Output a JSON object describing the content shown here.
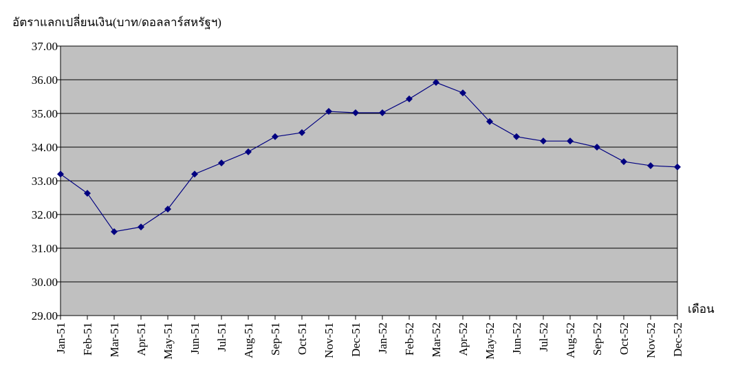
{
  "chart_data": {
    "type": "line",
    "y_axis_label": "อัตราแลกเปลี่ยนเงิน(บาท/ดอลลาร์สหรัฐฯ)",
    "x_axis_label": "เดือน",
    "categories": [
      "Jan-51",
      "Feb-51",
      "Mar-51",
      "Apr-51",
      "May-51",
      "Jun-51",
      "Jul-51",
      "Aug-51",
      "Sep-51",
      "Oct-51",
      "Nov-51",
      "Dec-51",
      "Jan-52",
      "Feb-52",
      "Mar-52",
      "Apr-52",
      "May-52",
      "Jun-52",
      "Jul-52",
      "Aug-52",
      "Sep-52",
      "Oct-52",
      "Nov-52",
      "Dec-52"
    ],
    "series": [
      {
        "color": "#000080",
        "values": [
          33.2,
          32.63,
          31.49,
          31.63,
          32.16,
          33.2,
          33.53,
          33.86,
          34.31,
          34.43,
          35.06,
          35.02,
          35.02,
          35.43,
          35.92,
          35.61,
          34.76,
          34.31,
          34.18,
          34.18,
          34.0,
          33.57,
          33.45,
          33.41
        ]
      }
    ],
    "ylim": [
      29,
      37
    ],
    "yticks": [
      {
        "value": 29,
        "label": "29.00"
      },
      {
        "value": 30,
        "label": "30.00"
      },
      {
        "value": 31,
        "label": "31.00"
      },
      {
        "value": 32,
        "label": "32.00"
      },
      {
        "value": 33,
        "label": "33.00"
      },
      {
        "value": 34,
        "label": "34.00"
      },
      {
        "value": 35,
        "label": "35.00"
      },
      {
        "value": 36,
        "label": "36.00"
      },
      {
        "value": 37,
        "label": "37.00"
      }
    ],
    "grid": true,
    "plot_background": "#c0c0c0"
  }
}
